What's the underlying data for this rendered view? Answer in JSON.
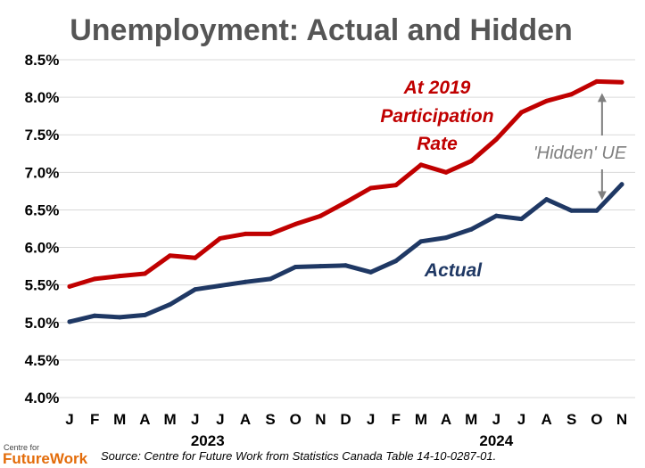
{
  "chart_data": {
    "type": "line",
    "title": "Unemployment: Actual and Hidden",
    "xlabel": "",
    "ylabel": "",
    "categories": [
      "J",
      "F",
      "M",
      "A",
      "M",
      "J",
      "J",
      "A",
      "S",
      "O",
      "N",
      "D",
      "J",
      "F",
      "M",
      "A",
      "M",
      "J",
      "J",
      "A",
      "S",
      "O",
      "N"
    ],
    "years": [
      {
        "label": "2023",
        "start_index": 0,
        "end_index": 11
      },
      {
        "label": "2024",
        "start_index": 12,
        "end_index": 22
      }
    ],
    "ylim": [
      4.0,
      8.5
    ],
    "yticks": [
      "4.0%",
      "4.5%",
      "5.0%",
      "5.5%",
      "6.0%",
      "6.5%",
      "7.0%",
      "7.5%",
      "8.0%",
      "8.5%"
    ],
    "ytick_values": [
      4.0,
      4.5,
      5.0,
      5.5,
      6.0,
      6.5,
      7.0,
      7.5,
      8.0,
      8.5
    ],
    "grid": true,
    "series": [
      {
        "label": "At 2019 Participation Rate",
        "color": "#c00000",
        "values": [
          5.48,
          5.58,
          5.62,
          5.65,
          5.89,
          5.86,
          6.12,
          6.18,
          6.18,
          6.31,
          6.42,
          6.6,
          6.79,
          6.83,
          7.1,
          7.0,
          7.15,
          7.44,
          7.8,
          7.95,
          8.04,
          8.21,
          8.2
        ]
      },
      {
        "label": "Actual",
        "color": "#1f3864",
        "values": [
          5.01,
          5.09,
          5.07,
          5.1,
          5.24,
          5.44,
          5.49,
          5.54,
          5.58,
          5.74,
          5.75,
          5.76,
          5.67,
          5.82,
          6.08,
          6.13,
          6.24,
          6.42,
          6.38,
          6.64,
          6.49,
          6.49,
          6.84
        ]
      }
    ],
    "annotations": {
      "red_label": [
        "At 2019",
        "Participation",
        "Rate"
      ],
      "blue_label": "Actual",
      "gap_label": "'Hidden' UE",
      "gap_index": 21
    },
    "source": "Source: Centre for Future Work from Statistics Canada Table 14-10-0287-01."
  },
  "logo": {
    "line1": "Centre for",
    "line2": "FutureWork"
  }
}
